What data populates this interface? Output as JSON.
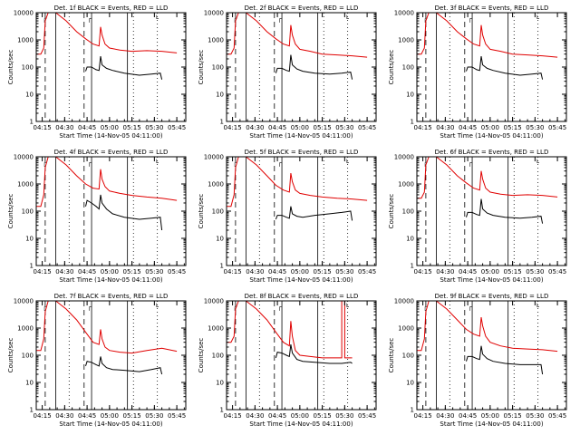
{
  "colors": {
    "events": "#000000",
    "lld": "#e00000",
    "frame": "#000000"
  },
  "chart_data": [
    {
      "type": "line",
      "title": "Det. 1f BLACK = Events, RED = LLD",
      "xlabel": "Start Time (14-Nov-05 04:11:00)",
      "ylabel": "Counts/sec",
      "xlim": [
        "04:11",
        "05:51"
      ],
      "ylim": [
        1,
        10000
      ],
      "yscale": "log",
      "xticks": [
        "04:15",
        "04:30",
        "04:45",
        "05:00",
        "05:15",
        "05:30",
        "05:45"
      ],
      "yticks": [
        "1",
        "10",
        "100",
        "1000",
        "10000"
      ],
      "series": [
        {
          "color": "red",
          "x": [
            "04:11",
            "04:14",
            "04:16",
            "04:17",
            "04:19",
            "04:24",
            "04:31",
            "04:38",
            "04:44",
            "04:49",
            "04:53",
            "04:54",
            "04:55",
            "04:57",
            "05:00",
            "05:07",
            "05:15",
            "05:25",
            "05:35",
            "05:45"
          ],
          "y": [
            300,
            300,
            500,
            5000,
            10000,
            10000,
            5000,
            2000,
            1100,
            700,
            600,
            3000,
            1500,
            700,
            500,
            420,
            380,
            400,
            380,
            330
          ]
        },
        {
          "color": "black",
          "x": [
            "04:44",
            "04:45",
            "04:48",
            "04:51",
            "04:53",
            "04:54",
            "04:55",
            "04:58",
            "05:02",
            "05:10",
            "05:20",
            "05:28",
            "05:34",
            "05:35"
          ],
          "y": [
            70,
            100,
            100,
            80,
            75,
            250,
            120,
            90,
            75,
            60,
            50,
            55,
            60,
            35
          ]
        }
      ]
    },
    {
      "type": "line",
      "title": "Det. 2f BLACK = Events, RED = LLD",
      "xlabel": "Start Time (14-Nov-05 04:11:00)",
      "ylabel": "Counts/sec",
      "xlim": [
        "04:11",
        "05:51"
      ],
      "ylim": [
        1,
        10000
      ],
      "yscale": "log",
      "xticks": [
        "04:15",
        "04:30",
        "04:45",
        "05:00",
        "05:15",
        "05:30",
        "05:45"
      ],
      "yticks": [
        "1",
        "10",
        "100",
        "1000",
        "10000"
      ],
      "series": [
        {
          "color": "red",
          "x": [
            "04:11",
            "04:14",
            "04:16",
            "04:17",
            "04:19",
            "04:24",
            "04:31",
            "04:38",
            "04:44",
            "04:49",
            "04:53",
            "04:54",
            "04:55",
            "04:57",
            "05:00",
            "05:07",
            "05:15",
            "05:25",
            "05:35",
            "05:45"
          ],
          "y": [
            300,
            300,
            500,
            5000,
            10000,
            10000,
            5000,
            2000,
            1100,
            700,
            600,
            3500,
            1500,
            700,
            450,
            380,
            300,
            280,
            260,
            230
          ]
        },
        {
          "color": "black",
          "x": [
            "04:44",
            "04:45",
            "04:48",
            "04:51",
            "04:53",
            "04:54",
            "04:55",
            "04:58",
            "05:02",
            "05:10",
            "05:20",
            "05:28",
            "05:34",
            "05:35"
          ],
          "y": [
            60,
            90,
            90,
            75,
            70,
            280,
            120,
            85,
            70,
            60,
            55,
            60,
            65,
            35
          ]
        }
      ]
    },
    {
      "type": "line",
      "title": "Det. 3f BLACK = Events, RED = LLD",
      "xlabel": "Start Time (14-Nov-05 04:11:00)",
      "ylabel": "Counts/sec",
      "xlim": [
        "04:11",
        "05:51"
      ],
      "ylim": [
        1,
        10000
      ],
      "yscale": "log",
      "xticks": [
        "04:15",
        "04:30",
        "04:45",
        "05:00",
        "05:15",
        "05:30",
        "05:45"
      ],
      "yticks": [
        "1",
        "10",
        "100",
        "1000",
        "10000"
      ],
      "series": [
        {
          "color": "red",
          "x": [
            "04:11",
            "04:14",
            "04:16",
            "04:17",
            "04:19",
            "04:24",
            "04:31",
            "04:38",
            "04:44",
            "04:49",
            "04:53",
            "04:54",
            "04:55",
            "04:57",
            "05:00",
            "05:07",
            "05:15",
            "05:25",
            "05:35",
            "05:45"
          ],
          "y": [
            300,
            300,
            500,
            5000,
            10000,
            10000,
            5000,
            2000,
            1100,
            700,
            600,
            3500,
            1500,
            700,
            450,
            380,
            300,
            280,
            260,
            230
          ]
        },
        {
          "color": "black",
          "x": [
            "04:44",
            "04:45",
            "04:48",
            "04:51",
            "04:53",
            "04:54",
            "04:55",
            "04:58",
            "05:02",
            "05:10",
            "05:20",
            "05:28",
            "05:34",
            "05:35"
          ],
          "y": [
            70,
            100,
            100,
            80,
            75,
            250,
            120,
            90,
            75,
            60,
            50,
            55,
            60,
            35
          ]
        }
      ]
    },
    {
      "type": "line",
      "title": "Det. 4f BLACK = Events, RED = LLD",
      "xlabel": "Start Time (14-Nov-05 04:11:00)",
      "ylabel": "Counts/sec",
      "xlim": [
        "04:11",
        "05:51"
      ],
      "ylim": [
        1,
        10000
      ],
      "yscale": "log",
      "xticks": [
        "04:15",
        "04:30",
        "04:45",
        "05:00",
        "05:15",
        "05:30",
        "05:45"
      ],
      "yticks": [
        "1",
        "10",
        "100",
        "1000",
        "10000"
      ],
      "series": [
        {
          "color": "red",
          "x": [
            "04:11",
            "04:14",
            "04:16",
            "04:17",
            "04:19",
            "04:24",
            "04:31",
            "04:38",
            "04:44",
            "04:49",
            "04:53",
            "04:54",
            "04:55",
            "04:57",
            "05:00",
            "05:07",
            "05:15",
            "05:25",
            "05:35",
            "05:45"
          ],
          "y": [
            150,
            150,
            400,
            4000,
            10000,
            10000,
            5000,
            2000,
            1000,
            700,
            650,
            3500,
            1500,
            800,
            550,
            450,
            380,
            330,
            300,
            250
          ]
        },
        {
          "color": "black",
          "x": [
            "04:44",
            "04:45",
            "04:48",
            "04:51",
            "04:53",
            "04:54",
            "04:55",
            "04:58",
            "05:02",
            "05:10",
            "05:20",
            "05:28",
            "05:34",
            "05:35"
          ],
          "y": [
            150,
            250,
            200,
            150,
            120,
            400,
            200,
            120,
            80,
            60,
            50,
            55,
            60,
            20
          ]
        }
      ]
    },
    {
      "type": "line",
      "title": "Det. 5f BLACK = Events, RED = LLD",
      "xlabel": "Start Time (14-Nov-05 04:11:00)",
      "ylabel": "Counts/sec",
      "xlim": [
        "04:11",
        "05:51"
      ],
      "ylim": [
        1,
        10000
      ],
      "yscale": "log",
      "xticks": [
        "04:15",
        "04:30",
        "04:45",
        "05:00",
        "05:15",
        "05:30",
        "05:45"
      ],
      "yticks": [
        "1",
        "10",
        "100",
        "1000",
        "10000"
      ],
      "series": [
        {
          "color": "red",
          "x": [
            "04:11",
            "04:14",
            "04:16",
            "04:17",
            "04:19",
            "04:24",
            "04:31",
            "04:38",
            "04:44",
            "04:49",
            "04:53",
            "04:54",
            "04:55",
            "04:57",
            "05:00",
            "05:07",
            "05:15",
            "05:25",
            "05:35",
            "05:45"
          ],
          "y": [
            150,
            150,
            400,
            4000,
            10000,
            10000,
            5000,
            2000,
            900,
            600,
            500,
            2500,
            1200,
            600,
            450,
            380,
            330,
            300,
            280,
            250
          ]
        },
        {
          "color": "black",
          "x": [
            "04:44",
            "04:45",
            "04:48",
            "04:51",
            "04:53",
            "04:54",
            "04:55",
            "04:58",
            "05:02",
            "05:10",
            "05:20",
            "05:28",
            "05:34",
            "05:35"
          ],
          "y": [
            50,
            70,
            70,
            60,
            55,
            150,
            80,
            65,
            60,
            70,
            80,
            90,
            100,
            45
          ]
        }
      ]
    },
    {
      "type": "line",
      "title": "Det. 6f BLACK = Events, RED = LLD",
      "xlabel": "Start Time (14-Nov-05 04:11:00)",
      "ylabel": "Counts/sec",
      "xlim": [
        "04:11",
        "05:51"
      ],
      "ylim": [
        1,
        10000
      ],
      "yscale": "log",
      "xticks": [
        "04:15",
        "04:30",
        "04:45",
        "05:00",
        "05:15",
        "05:30",
        "05:45"
      ],
      "yticks": [
        "1",
        "10",
        "100",
        "1000",
        "10000"
      ],
      "series": [
        {
          "color": "red",
          "x": [
            "04:11",
            "04:14",
            "04:16",
            "04:17",
            "04:19",
            "04:24",
            "04:31",
            "04:38",
            "04:44",
            "04:49",
            "04:53",
            "04:54",
            "04:55",
            "04:57",
            "05:00",
            "05:07",
            "05:15",
            "05:25",
            "05:35",
            "05:45"
          ],
          "y": [
            300,
            300,
            500,
            5000,
            10000,
            10000,
            5000,
            2000,
            1100,
            700,
            600,
            3000,
            1500,
            700,
            500,
            420,
            380,
            400,
            380,
            330
          ]
        },
        {
          "color": "black",
          "x": [
            "04:44",
            "04:45",
            "04:48",
            "04:51",
            "04:53",
            "04:54",
            "04:55",
            "04:58",
            "05:02",
            "05:10",
            "05:20",
            "05:28",
            "05:34",
            "05:35"
          ],
          "y": [
            60,
            90,
            90,
            75,
            70,
            280,
            120,
            85,
            70,
            60,
            55,
            60,
            65,
            35
          ]
        }
      ]
    },
    {
      "type": "line",
      "title": "Det. 7f BLACK = Events, RED = LLD",
      "xlabel": "Start Time (14-Nov-05 04:11:00)",
      "ylabel": "Counts/sec",
      "xlim": [
        "04:11",
        "05:51"
      ],
      "ylim": [
        1,
        10000
      ],
      "yscale": "log",
      "xticks": [
        "04:15",
        "04:30",
        "04:45",
        "05:00",
        "05:15",
        "05:30",
        "05:45"
      ],
      "yticks": [
        "1",
        "10",
        "100",
        "1000",
        "10000"
      ],
      "series": [
        {
          "color": "red",
          "x": [
            "04:11",
            "04:14",
            "04:16",
            "04:17",
            "04:19",
            "04:24",
            "04:31",
            "04:38",
            "04:44",
            "04:49",
            "04:53",
            "04:54",
            "04:55",
            "04:57",
            "05:00",
            "05:07",
            "05:15",
            "05:25",
            "05:35",
            "05:45"
          ],
          "y": [
            150,
            150,
            400,
            4000,
            10000,
            10000,
            5000,
            2000,
            700,
            300,
            250,
            900,
            400,
            200,
            150,
            130,
            120,
            150,
            180,
            140
          ]
        },
        {
          "color": "black",
          "x": [
            "04:44",
            "04:45",
            "04:48",
            "04:51",
            "04:53",
            "04:54",
            "04:55",
            "04:58",
            "05:02",
            "05:10",
            "05:20",
            "05:28",
            "05:34",
            "05:35"
          ],
          "y": [
            40,
            60,
            55,
            45,
            40,
            90,
            50,
            35,
            30,
            28,
            25,
            30,
            35,
            20
          ]
        }
      ]
    },
    {
      "type": "line",
      "title": "Det. 8f BLACK = Events, RED = LLD",
      "xlabel": "Start Time (14-Nov-05 04:11:00)",
      "ylabel": "Counts/sec",
      "xlim": [
        "04:11",
        "05:51"
      ],
      "ylim": [
        1,
        10000
      ],
      "yscale": "log",
      "xticks": [
        "04:15",
        "04:30",
        "04:45",
        "05:00",
        "05:15",
        "05:30",
        "05:45"
      ],
      "yticks": [
        "1",
        "10",
        "100",
        "1000",
        "10000"
      ],
      "series": [
        {
          "color": "red",
          "x": [
            "04:11",
            "04:14",
            "04:16",
            "04:17",
            "04:19",
            "04:24",
            "04:31",
            "04:38",
            "04:44",
            "04:49",
            "04:53",
            "04:54",
            "04:55",
            "04:57",
            "05:00",
            "05:07",
            "05:15",
            "05:25",
            "05:28",
            "05:28",
            "05:30",
            "05:30",
            "05:35"
          ],
          "y": [
            300,
            300,
            500,
            5000,
            10000,
            10000,
            5000,
            2000,
            700,
            300,
            220,
            1800,
            500,
            150,
            100,
            90,
            80,
            80,
            80,
            10000,
            10000,
            80,
            80
          ]
        },
        {
          "color": "black",
          "x": [
            "04:44",
            "04:45",
            "04:48",
            "04:51",
            "04:53",
            "04:54",
            "04:55",
            "04:58",
            "05:02",
            "05:10",
            "05:20",
            "05:28",
            "05:34",
            "05:35"
          ],
          "y": [
            80,
            130,
            120,
            100,
            90,
            250,
            120,
            70,
            60,
            55,
            50,
            50,
            55,
            50
          ]
        }
      ]
    },
    {
      "type": "line",
      "title": "Det. 9f BLACK = Events, RED = LLD",
      "xlabel": "Start Time (14-Nov-05 04:11:00)",
      "ylabel": "Counts/sec",
      "xlim": [
        "04:11",
        "05:51"
      ],
      "ylim": [
        1,
        10000
      ],
      "yscale": "log",
      "xticks": [
        "04:15",
        "04:30",
        "04:45",
        "05:00",
        "05:15",
        "05:30",
        "05:45"
      ],
      "yticks": [
        "1",
        "10",
        "100",
        "1000",
        "10000"
      ],
      "series": [
        {
          "color": "red",
          "x": [
            "04:11",
            "04:14",
            "04:16",
            "04:17",
            "04:19",
            "04:24",
            "04:31",
            "04:38",
            "04:44",
            "04:49",
            "04:53",
            "04:54",
            "04:55",
            "04:57",
            "05:00",
            "05:07",
            "05:15",
            "05:25",
            "05:35",
            "05:45"
          ],
          "y": [
            150,
            150,
            400,
            4000,
            10000,
            10000,
            5000,
            2000,
            900,
            600,
            500,
            2500,
            1200,
            500,
            300,
            220,
            180,
            170,
            160,
            140
          ]
        },
        {
          "color": "black",
          "x": [
            "04:44",
            "04:45",
            "04:48",
            "04:51",
            "04:53",
            "04:54",
            "04:55",
            "04:58",
            "05:02",
            "05:10",
            "05:20",
            "05:28",
            "05:34",
            "05:35"
          ],
          "y": [
            60,
            90,
            90,
            75,
            70,
            220,
            110,
            75,
            60,
            50,
            45,
            45,
            45,
            20
          ]
        }
      ]
    }
  ]
}
